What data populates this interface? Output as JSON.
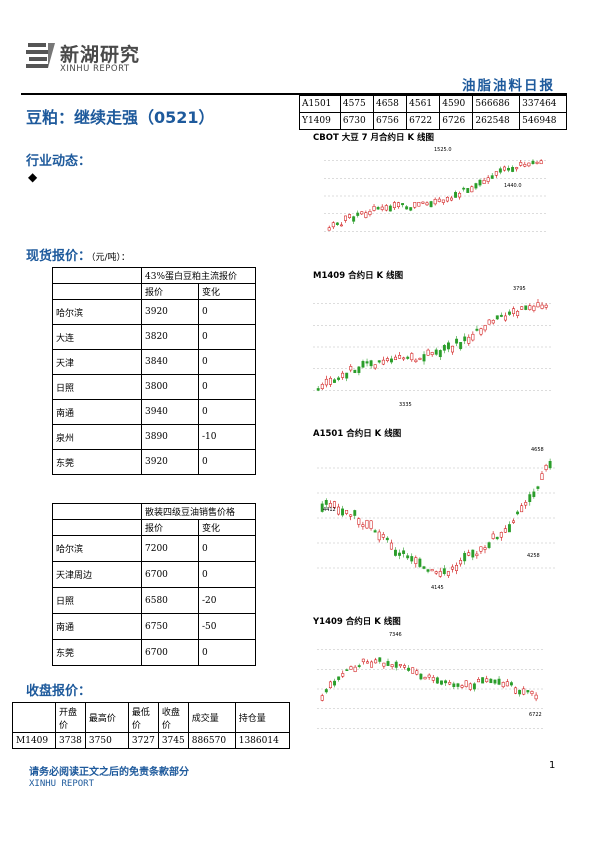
{
  "header": {
    "logo_cn": "新湖研究",
    "logo_en": "XINHU REPORT",
    "report_title": "油脂油料日报"
  },
  "main_title": "豆粕：继续走强（0521）",
  "top_quote_table": {
    "rows": [
      [
        "A1501",
        "4575",
        "4658",
        "4561",
        "4590",
        "566686",
        "337464"
      ],
      [
        "Y1409",
        "6730",
        "6756",
        "6722",
        "6726",
        "262548",
        "546948"
      ]
    ]
  },
  "industry_news": {
    "heading": "行业动态：",
    "bullet": "◆"
  },
  "spot_price": {
    "heading": "现货报价：",
    "unit": "（元/吨）："
  },
  "soymeal_table": {
    "title": "43%蛋白豆粕主流报价",
    "headers": [
      "报价",
      "变化"
    ],
    "rows": [
      [
        "哈尔滨",
        "3920",
        "0"
      ],
      [
        "大连",
        "3820",
        "0"
      ],
      [
        "天津",
        "3840",
        "0"
      ],
      [
        "日照",
        "3800",
        "0"
      ],
      [
        "南通",
        "3940",
        "0"
      ],
      [
        "泉州",
        "3890",
        "-10"
      ],
      [
        "东莞",
        "3920",
        "0"
      ]
    ]
  },
  "soyoil_table": {
    "title": "散装四级豆油销售价格",
    "headers": [
      "报价",
      "变化"
    ],
    "rows": [
      [
        "哈尔滨",
        "7200",
        "0"
      ],
      [
        "天津周边",
        "6700",
        "0"
      ],
      [
        "日照",
        "6580",
        "-20"
      ],
      [
        "南通",
        "6750",
        "-50"
      ],
      [
        "东莞",
        "6700",
        "0"
      ]
    ]
  },
  "closing_price": {
    "heading": "收盘报价：",
    "headers": [
      "",
      "开盘价",
      "最高价",
      "最低价",
      "收盘价",
      "成交量",
      "持仓量"
    ],
    "rows": [
      [
        "M1409",
        "3738",
        "3750",
        "3727",
        "3745",
        "886570",
        "1386014"
      ]
    ]
  },
  "charts": [
    {
      "title": "CBOT 大豆 7 月合约日 K 线图",
      "label_high": "1525.0",
      "label_low": "1440.0",
      "up_color": "#cc0000",
      "down_color": "#2a9d2a"
    },
    {
      "title": "M1409 合约日 K 线图",
      "label_high": "3795",
      "label_low": "3335"
    },
    {
      "title": "A1501 合约日 K 线图",
      "label_high": "4658",
      "label_left": "4412",
      "label_mid": "4258",
      "label_low": "4145"
    },
    {
      "title": "Y1409 合约日 K 线图",
      "label_high": "7346",
      "label_low": "6722"
    }
  ],
  "footer": {
    "disclaimer": "请务必阅读正文之后的免责条款部分",
    "brand": "XINHU REPORT",
    "page": "1"
  }
}
